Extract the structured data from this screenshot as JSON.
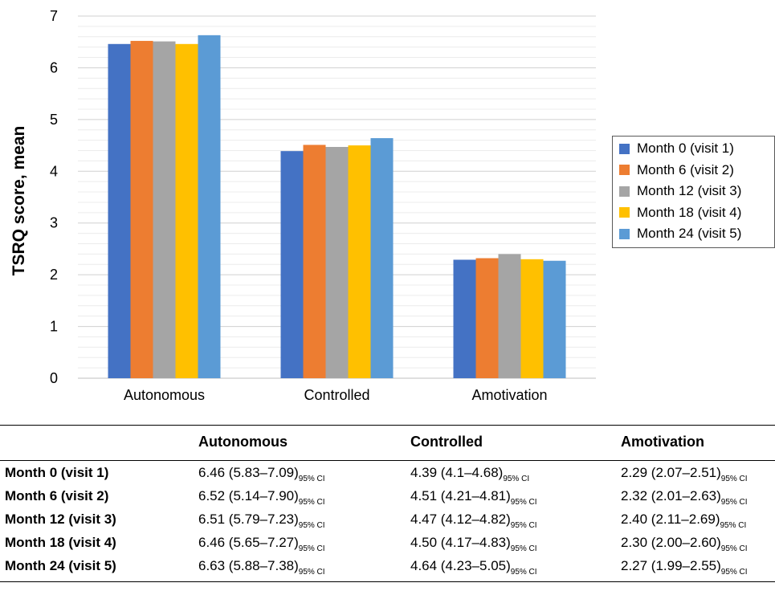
{
  "chart_data": {
    "type": "bar",
    "title": "",
    "xlabel": "",
    "ylabel": "TSRQ score, mean",
    "ylim": [
      0,
      7
    ],
    "yticks": [
      0,
      1,
      2,
      3,
      4,
      5,
      6,
      7
    ],
    "grid": true,
    "legend_position": "right",
    "categories": [
      "Autonomous",
      "Controlled",
      "Amotivation"
    ],
    "series": [
      {
        "name": "Month 0 (visit 1)",
        "color": "#4472C4",
        "values": [
          6.46,
          4.39,
          2.29
        ]
      },
      {
        "name": "Month 6 (visit 2)",
        "color": "#ED7D31",
        "values": [
          6.52,
          4.51,
          2.32
        ]
      },
      {
        "name": "Month 12 (visit 3)",
        "color": "#A5A5A5",
        "values": [
          6.51,
          4.47,
          2.4
        ]
      },
      {
        "name": "Month 18 (visit 4)",
        "color": "#FFC000",
        "values": [
          6.46,
          4.5,
          2.3
        ]
      },
      {
        "name": "Month 24 (visit 5)",
        "color": "#5B9BD5",
        "values": [
          6.63,
          4.64,
          2.27
        ]
      }
    ]
  },
  "table": {
    "columns": [
      "Autonomous",
      "Controlled",
      "Amotivation"
    ],
    "ci_label": "95% CI",
    "rows": [
      {
        "label": "Month 0 (visit 1)",
        "cells": [
          "6.46 (5.83–7.09)",
          "4.39 (4.1–4.68)",
          "2.29 (2.07–2.51)"
        ]
      },
      {
        "label": "Month 6 (visit 2)",
        "cells": [
          "6.52 (5.14–7.90)",
          "4.51 (4.21–4.81)",
          "2.32 (2.01–2.63)"
        ]
      },
      {
        "label": "Month 12 (visit 3)",
        "cells": [
          "6.51 (5.79–7.23)",
          "4.47 (4.12–4.82)",
          "2.40 (2.11–2.69)"
        ]
      },
      {
        "label": "Month 18 (visit 4)",
        "cells": [
          "6.46 (5.65–7.27)",
          "4.50 (4.17–4.83)",
          "2.30 (2.00–2.60)"
        ]
      },
      {
        "label": "Month 24 (visit 5)",
        "cells": [
          "6.63 (5.88–7.38)",
          "4.64 (4.23–5.05)",
          "2.27 (1.99–2.55)"
        ]
      }
    ]
  }
}
